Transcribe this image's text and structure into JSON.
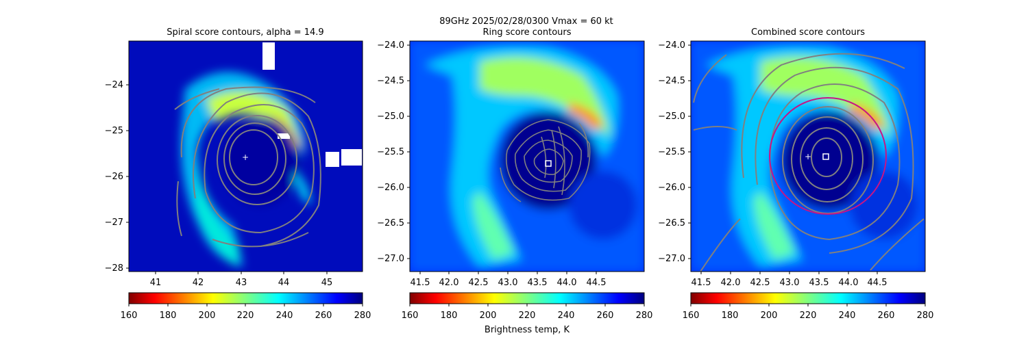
{
  "figure": {
    "suptitle_line1": "89GHz  2025/02/28/0300    Vmax = 60 kt",
    "colorbar_label": "Brightness temp, K"
  },
  "colormap": {
    "name": "jet_r",
    "stops": [
      "#800000",
      "#ff0000",
      "#ffff00",
      "#00ffff",
      "#0000ff",
      "#000080"
    ],
    "contour_color": "#808080",
    "ring_color": "#c71585"
  },
  "chart_data": [
    {
      "type": "heatmap",
      "title": "Spiral score contours, alpha = 14.9",
      "xlim": [
        40.45,
        45.95
      ],
      "ylim": [
        -28.05,
        -22.95
      ],
      "xticks": [
        41,
        42,
        43,
        44,
        45
      ],
      "xtick_labels": [
        "41",
        "42",
        "43",
        "44",
        "45"
      ],
      "yticks": [
        -24,
        -25,
        -26,
        -27,
        -28
      ],
      "ytick_labels": [
        "−24",
        "−25",
        "−26",
        "−27",
        "−28"
      ],
      "center_marker": [
        43.13,
        -25.58
      ],
      "colorbar": {
        "min": 160,
        "max": 280,
        "ticks": [
          "160",
          "180",
          "200",
          "220",
          "240",
          "260",
          "280"
        ]
      }
    },
    {
      "type": "heatmap",
      "title": "Ring score contours",
      "xlim": [
        41.3,
        44.95
      ],
      "ylim": [
        -27.2,
        -23.97
      ],
      "xticks": [
        41.5,
        42.0,
        42.5,
        43.0,
        43.5,
        44.0,
        44.5
      ],
      "xtick_labels": [
        "41.5",
        "42.0",
        "42.5",
        "43.0",
        "43.5",
        "44.0",
        "44.5"
      ],
      "yticks": [
        -24.0,
        -24.5,
        -25.0,
        -25.5,
        -26.0,
        -26.5,
        -27.0
      ],
      "ytick_labels": [
        "−24.0",
        "−24.5",
        "−25.0",
        "−25.5",
        "−26.0",
        "−26.5",
        "−27.0"
      ],
      "center_marker": [
        43.47,
        -25.65
      ],
      "colorbar": {
        "min": 160,
        "max": 280,
        "ticks": [
          "160",
          "180",
          "200",
          "220",
          "240",
          "260",
          "280"
        ]
      }
    },
    {
      "type": "heatmap",
      "title": "Combined score contours",
      "xlim": [
        41.3,
        44.95
      ],
      "ylim": [
        -27.2,
        -23.97
      ],
      "xticks": [
        41.5,
        42.0,
        42.5,
        43.0,
        43.5,
        44.0,
        44.5
      ],
      "xtick_labels": [
        "41.5",
        "42.0",
        "42.5",
        "43.0",
        "43.5",
        "44.0",
        "44.5"
      ],
      "yticks": [
        -24.0,
        -24.5,
        -25.0,
        -25.5,
        -26.0,
        -26.5,
        -27.0
      ],
      "ytick_labels": [
        "−24.0",
        "−24.5",
        "−25.0",
        "−25.5",
        "−26.0",
        "−26.5",
        "−27.0"
      ],
      "center_marker": [
        43.13,
        -25.57
      ],
      "square_marker": [
        43.4,
        -25.57
      ],
      "ring_circle": {
        "center": [
          43.42,
          -25.57
        ],
        "radius_deg": 0.8
      },
      "colorbar": {
        "min": 160,
        "max": 280,
        "ticks": [
          "160",
          "180",
          "200",
          "220",
          "240",
          "260",
          "280"
        ]
      }
    }
  ]
}
